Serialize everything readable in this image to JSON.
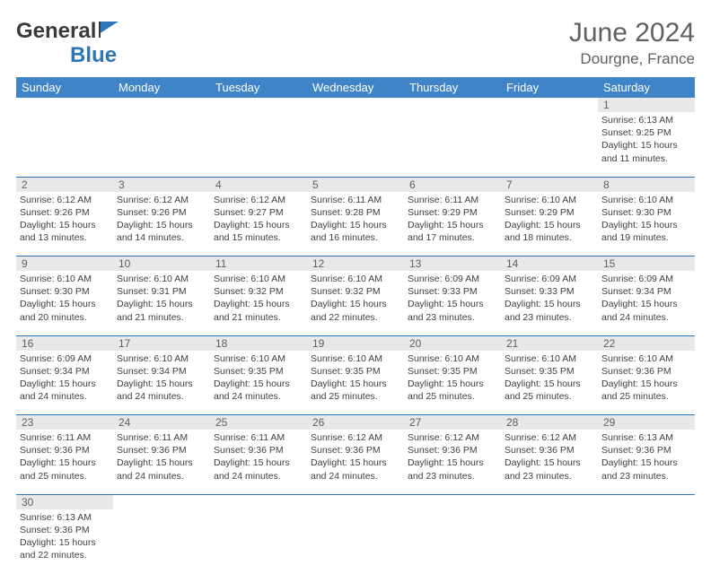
{
  "brand": {
    "part1": "General",
    "part2": "Blue"
  },
  "title": "June 2024",
  "location": "Dourgne, France",
  "colors": {
    "header_bg": "#3e84c6",
    "header_text": "#ffffff",
    "daynum_bg": "#e8e8e8",
    "cell_border": "#2d76ba",
    "text": "#404040",
    "brand_blue": "#2d76ba",
    "brand_gray": "#3a3a3a",
    "background": "#ffffff"
  },
  "weekdays": [
    "Sunday",
    "Monday",
    "Tuesday",
    "Wednesday",
    "Thursday",
    "Friday",
    "Saturday"
  ],
  "weeks": [
    [
      null,
      null,
      null,
      null,
      null,
      null,
      {
        "num": "1",
        "sunrise": "Sunrise: 6:13 AM",
        "sunset": "Sunset: 9:25 PM",
        "daylight": "Daylight: 15 hours and 11 minutes."
      }
    ],
    [
      {
        "num": "2",
        "sunrise": "Sunrise: 6:12 AM",
        "sunset": "Sunset: 9:26 PM",
        "daylight": "Daylight: 15 hours and 13 minutes."
      },
      {
        "num": "3",
        "sunrise": "Sunrise: 6:12 AM",
        "sunset": "Sunset: 9:26 PM",
        "daylight": "Daylight: 15 hours and 14 minutes."
      },
      {
        "num": "4",
        "sunrise": "Sunrise: 6:12 AM",
        "sunset": "Sunset: 9:27 PM",
        "daylight": "Daylight: 15 hours and 15 minutes."
      },
      {
        "num": "5",
        "sunrise": "Sunrise: 6:11 AM",
        "sunset": "Sunset: 9:28 PM",
        "daylight": "Daylight: 15 hours and 16 minutes."
      },
      {
        "num": "6",
        "sunrise": "Sunrise: 6:11 AM",
        "sunset": "Sunset: 9:29 PM",
        "daylight": "Daylight: 15 hours and 17 minutes."
      },
      {
        "num": "7",
        "sunrise": "Sunrise: 6:10 AM",
        "sunset": "Sunset: 9:29 PM",
        "daylight": "Daylight: 15 hours and 18 minutes."
      },
      {
        "num": "8",
        "sunrise": "Sunrise: 6:10 AM",
        "sunset": "Sunset: 9:30 PM",
        "daylight": "Daylight: 15 hours and 19 minutes."
      }
    ],
    [
      {
        "num": "9",
        "sunrise": "Sunrise: 6:10 AM",
        "sunset": "Sunset: 9:30 PM",
        "daylight": "Daylight: 15 hours and 20 minutes."
      },
      {
        "num": "10",
        "sunrise": "Sunrise: 6:10 AM",
        "sunset": "Sunset: 9:31 PM",
        "daylight": "Daylight: 15 hours and 21 minutes."
      },
      {
        "num": "11",
        "sunrise": "Sunrise: 6:10 AM",
        "sunset": "Sunset: 9:32 PM",
        "daylight": "Daylight: 15 hours and 21 minutes."
      },
      {
        "num": "12",
        "sunrise": "Sunrise: 6:10 AM",
        "sunset": "Sunset: 9:32 PM",
        "daylight": "Daylight: 15 hours and 22 minutes."
      },
      {
        "num": "13",
        "sunrise": "Sunrise: 6:09 AM",
        "sunset": "Sunset: 9:33 PM",
        "daylight": "Daylight: 15 hours and 23 minutes."
      },
      {
        "num": "14",
        "sunrise": "Sunrise: 6:09 AM",
        "sunset": "Sunset: 9:33 PM",
        "daylight": "Daylight: 15 hours and 23 minutes."
      },
      {
        "num": "15",
        "sunrise": "Sunrise: 6:09 AM",
        "sunset": "Sunset: 9:34 PM",
        "daylight": "Daylight: 15 hours and 24 minutes."
      }
    ],
    [
      {
        "num": "16",
        "sunrise": "Sunrise: 6:09 AM",
        "sunset": "Sunset: 9:34 PM",
        "daylight": "Daylight: 15 hours and 24 minutes."
      },
      {
        "num": "17",
        "sunrise": "Sunrise: 6:10 AM",
        "sunset": "Sunset: 9:34 PM",
        "daylight": "Daylight: 15 hours and 24 minutes."
      },
      {
        "num": "18",
        "sunrise": "Sunrise: 6:10 AM",
        "sunset": "Sunset: 9:35 PM",
        "daylight": "Daylight: 15 hours and 24 minutes."
      },
      {
        "num": "19",
        "sunrise": "Sunrise: 6:10 AM",
        "sunset": "Sunset: 9:35 PM",
        "daylight": "Daylight: 15 hours and 25 minutes."
      },
      {
        "num": "20",
        "sunrise": "Sunrise: 6:10 AM",
        "sunset": "Sunset: 9:35 PM",
        "daylight": "Daylight: 15 hours and 25 minutes."
      },
      {
        "num": "21",
        "sunrise": "Sunrise: 6:10 AM",
        "sunset": "Sunset: 9:35 PM",
        "daylight": "Daylight: 15 hours and 25 minutes."
      },
      {
        "num": "22",
        "sunrise": "Sunrise: 6:10 AM",
        "sunset": "Sunset: 9:36 PM",
        "daylight": "Daylight: 15 hours and 25 minutes."
      }
    ],
    [
      {
        "num": "23",
        "sunrise": "Sunrise: 6:11 AM",
        "sunset": "Sunset: 9:36 PM",
        "daylight": "Daylight: 15 hours and 25 minutes."
      },
      {
        "num": "24",
        "sunrise": "Sunrise: 6:11 AM",
        "sunset": "Sunset: 9:36 PM",
        "daylight": "Daylight: 15 hours and 24 minutes."
      },
      {
        "num": "25",
        "sunrise": "Sunrise: 6:11 AM",
        "sunset": "Sunset: 9:36 PM",
        "daylight": "Daylight: 15 hours and 24 minutes."
      },
      {
        "num": "26",
        "sunrise": "Sunrise: 6:12 AM",
        "sunset": "Sunset: 9:36 PM",
        "daylight": "Daylight: 15 hours and 24 minutes."
      },
      {
        "num": "27",
        "sunrise": "Sunrise: 6:12 AM",
        "sunset": "Sunset: 9:36 PM",
        "daylight": "Daylight: 15 hours and 23 minutes."
      },
      {
        "num": "28",
        "sunrise": "Sunrise: 6:12 AM",
        "sunset": "Sunset: 9:36 PM",
        "daylight": "Daylight: 15 hours and 23 minutes."
      },
      {
        "num": "29",
        "sunrise": "Sunrise: 6:13 AM",
        "sunset": "Sunset: 9:36 PM",
        "daylight": "Daylight: 15 hours and 23 minutes."
      }
    ],
    [
      {
        "num": "30",
        "sunrise": "Sunrise: 6:13 AM",
        "sunset": "Sunset: 9:36 PM",
        "daylight": "Daylight: 15 hours and 22 minutes."
      },
      null,
      null,
      null,
      null,
      null,
      null
    ]
  ]
}
